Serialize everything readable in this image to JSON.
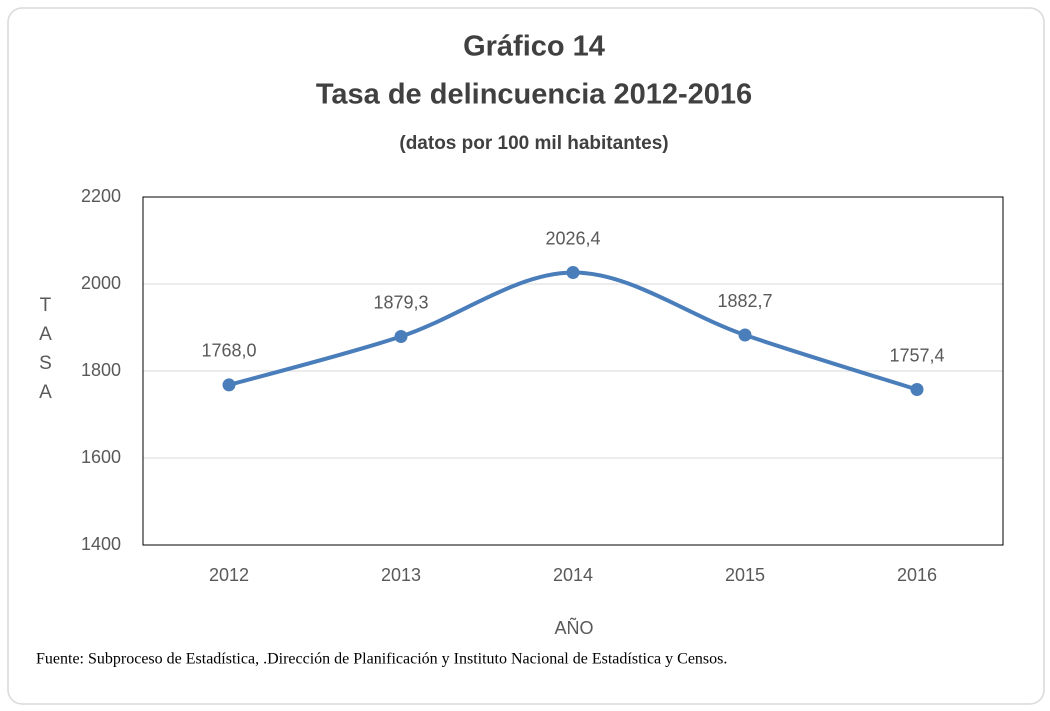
{
  "chart_data": {
    "type": "line",
    "title": "Gráfico 14",
    "subtitle": "Tasa de delincuencia 2012-2016",
    "note": "(datos por 100 mil habitantes)",
    "categories": [
      "2012",
      "2013",
      "2014",
      "2015",
      "2016"
    ],
    "series": [
      {
        "name": "Tasa",
        "color": "#4a7ebb",
        "values": [
          1768.0,
          1879.3,
          2026.4,
          1882.7,
          1757.4
        ],
        "value_labels": [
          "1768,0",
          "1879,3",
          "2026,4",
          "1882,7",
          "1757,4"
        ]
      }
    ],
    "ylim": [
      1400,
      2200
    ],
    "yticks": [
      1400,
      1600,
      1800,
      2000,
      2200
    ],
    "grid": true,
    "smooth": true,
    "y_label": "TASA",
    "x_label": "AÑO",
    "source": "Fuente: Subproceso de Estadística, .Dirección de Planificación y Instituto Nacional de Estadística y Censos."
  }
}
